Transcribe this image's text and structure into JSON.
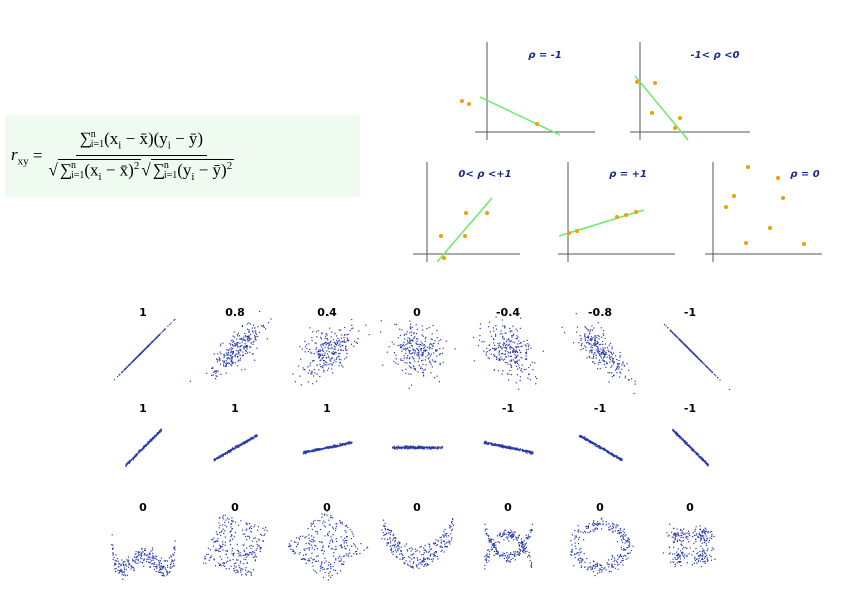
{
  "formula": {
    "lhs": "r",
    "lhs_sub": "xy",
    "equals": "=",
    "numerator": [
      "∑",
      "n",
      "i=1",
      "(x",
      "i",
      " − x̄)(y",
      "i",
      " − ȳ)"
    ],
    "denominator_x": [
      "∑",
      "n",
      "i=1",
      "(x",
      "i",
      " − x̄)",
      "2"
    ],
    "denominator_y": [
      "∑",
      "n",
      "i=1",
      "(y",
      "i",
      " − ȳ)",
      "2"
    ]
  },
  "panels": [
    {
      "label": "ρ = -1"
    },
    {
      "label": "-1< ρ <0"
    },
    {
      "label": "0< ρ <+1"
    },
    {
      "label": "ρ = +1"
    },
    {
      "label": "ρ = 0"
    }
  ],
  "grid": {
    "rows": [
      {
        "labels": [
          "1",
          "0.8",
          "0.4",
          "0",
          "-0.4",
          "-0.8",
          "-1"
        ]
      },
      {
        "labels": [
          "1",
          "1",
          "1",
          null,
          "-1",
          "-1",
          "-1"
        ]
      },
      {
        "labels": [
          "0",
          "0",
          "0",
          "0",
          "0",
          "0",
          "0"
        ]
      }
    ]
  }
}
